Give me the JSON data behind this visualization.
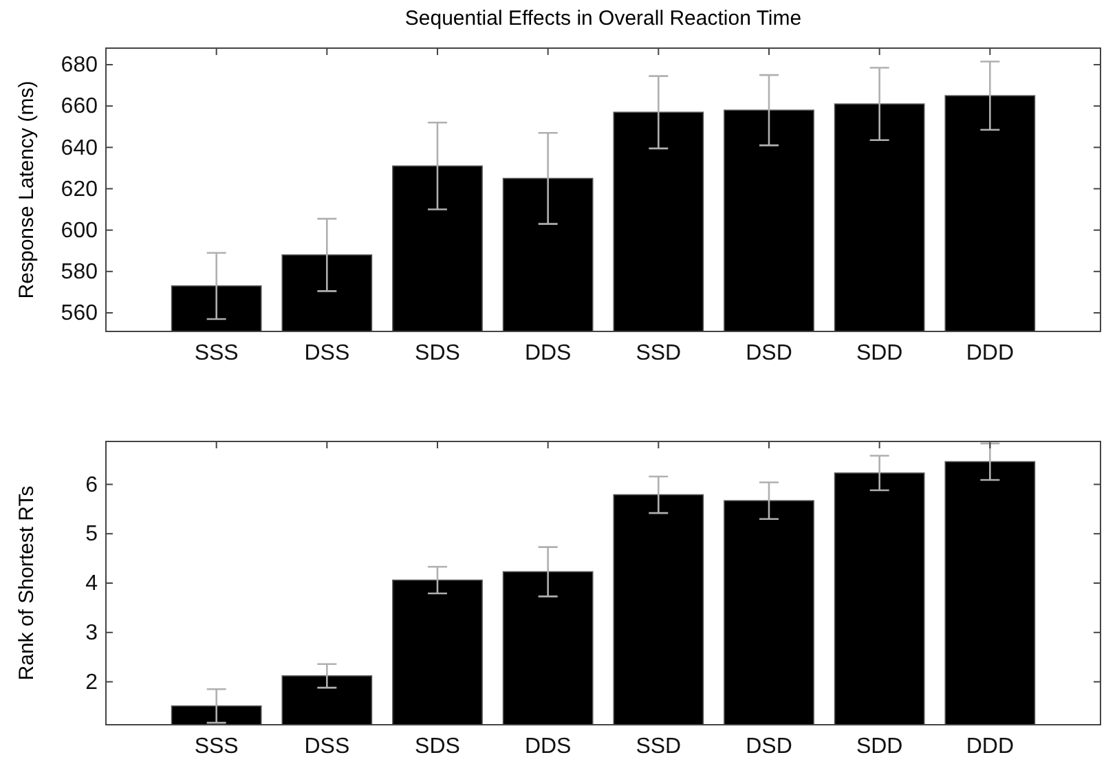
{
  "chart_data": [
    {
      "type": "bar",
      "title": "Sequential Effects in Overall Reaction Time",
      "ylabel": "Response Latency (ms)",
      "categories": [
        "SSS",
        "DSS",
        "SDS",
        "DDS",
        "SSD",
        "DSD",
        "SDD",
        "DDD"
      ],
      "series": [
        {
          "color": "#000000",
          "values": [
            573,
            588,
            631,
            625,
            657,
            658,
            661,
            665
          ],
          "errors": [
            16,
            17.5,
            21,
            22,
            17.5,
            17,
            17.5,
            16.5
          ]
        }
      ],
      "ylim": [
        551,
        688
      ],
      "yticks": [
        560,
        580,
        600,
        620,
        640,
        660,
        680
      ],
      "grid": false
    },
    {
      "type": "bar",
      "ylabel": "Rank of Shortest RTs",
      "categories": [
        "SSS",
        "DSS",
        "SDS",
        "DDS",
        "SSD",
        "DSD",
        "SDD",
        "DDD"
      ],
      "series": [
        {
          "color": "#000000",
          "values": [
            1.51,
            2.12,
            4.06,
            4.23,
            5.79,
            5.67,
            6.23,
            6.46
          ],
          "errors": [
            0.34,
            0.24,
            0.27,
            0.5,
            0.37,
            0.37,
            0.35,
            0.37
          ]
        }
      ],
      "ylim": [
        1.13,
        6.87
      ],
      "yticks": [
        2,
        3,
        4,
        5,
        6
      ],
      "grid": false
    }
  ]
}
